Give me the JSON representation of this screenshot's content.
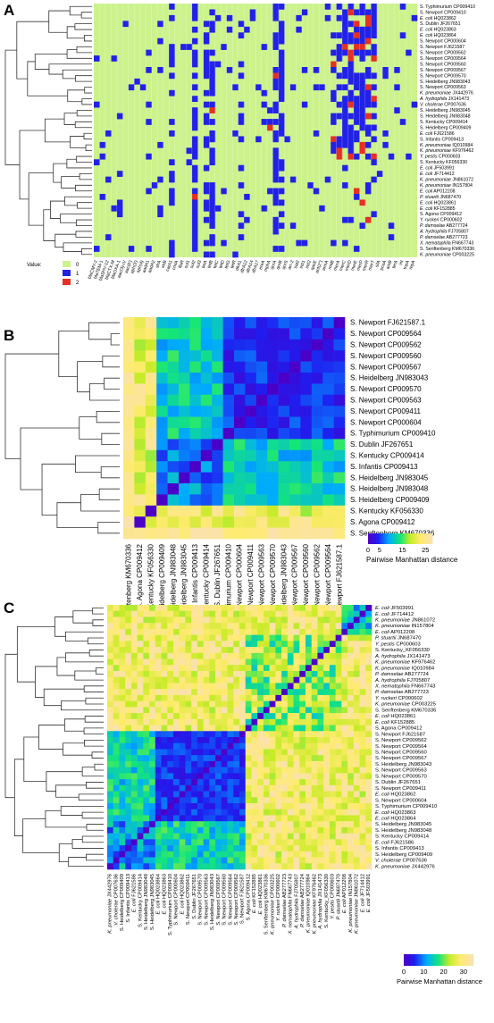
{
  "chart_data": [
    {
      "panel": "A",
      "type": "heatmap",
      "legend_title": "Value:",
      "legend_values": [
        "0",
        "1",
        "2"
      ],
      "colors": {
        "0": "#ccf28c",
        "1": "#2222e6",
        "2": "#e63022"
      },
      "rows": [
        "S. Typhimurium CP009410",
        "S. Newport CP009410",
        "E. coli HQ023862",
        "S. Dublin JF267651",
        "E. coli HQ023863",
        "E. coli HQ023864",
        "S. Newport CP000604",
        "S. Newport FJ621587",
        "S. Newport CP009562",
        "S. Newport CP009564",
        "S. Newport CP009560",
        "S. Newport CP009567",
        "S. Newport CP009570",
        "S. Heidelberg JN983043",
        "S. Newport CP009563",
        "K. pneumoniae JX442976",
        "A. hydrophila JX141473",
        "V. cholerae CP007636",
        "S. Heidelberg JN983045",
        "S. Heidelberg JN983048",
        "S. Kentucky CP009414",
        "S. Heidelberg CP009409",
        "E. coli FJ621586",
        "S. Infantis CP009413",
        "K. pneumoniae IQ010984",
        "K. pneumoniae KF976462",
        "Y. pestis CP000603",
        "S. Kentucky KF056330",
        "E. coli JF503991",
        "E. coli JF714412",
        "K. pneumoniae JN861072",
        "K. pneumoniae IN157804",
        "E. coli AP012208",
        "P. stuartii JN687470",
        "E. coli HQ023861",
        "E. coli KF152885",
        "S. Agona CP009412",
        "Y. ruckeri CP000602",
        "P. damselae AB277724",
        "A. hydrophila FJ705807",
        "P. damselae AB277723",
        "X. nematophila FN667743",
        "S. Senftenberg KM670336",
        "K. pneumoniae CP003225"
      ],
      "columns": [
        "blaCMY-2",
        "blaTEM-1",
        "blaSHV-12",
        "blaCTX-M",
        "blaOXA-1",
        "aac(3)-IV",
        "aac(6')",
        "aph(3')",
        "aph(4)",
        "aadA1",
        "aadA2",
        "strA",
        "strB",
        "catA1",
        "cmlA",
        "floR",
        "sul1",
        "sul2",
        "sul3",
        "tetA",
        "tetB",
        "tetC",
        "tetD",
        "tetG",
        "tetR",
        "dfrA1",
        "dfrA12",
        "dfrA14",
        "dfrA17",
        "ereA",
        "mphA",
        "qnrA",
        "qnrB",
        "qnrS",
        "arr-2",
        "sat2",
        "intI1",
        "intI2",
        "qacE",
        "ant(2'')",
        "armA",
        "rmtB",
        "merA",
        "merC",
        "merD",
        "merE",
        "merP",
        "merR",
        "merT",
        "silA",
        "pcoA",
        "arsB",
        "terA",
        "int",
        "tnpA",
        "repA"
      ],
      "row_dendrogram": true
    },
    {
      "panel": "B",
      "type": "heatmap",
      "colorbar_label": "Pairwise Manhattan distance",
      "colorbar_ticks": [
        0,
        5,
        15,
        25
      ],
      "colorbar_range": [
        0,
        28
      ],
      "rows": [
        "S. Newport FJ621587.1",
        "S. Newport CP009564",
        "S. Newport CP009562",
        "S. Newport CP009560",
        "S. Newport CP009567",
        "S. Heidelberg JN983043",
        "S. Newport CP009570",
        "S. Newport CP009563",
        "S. Newport CP009411",
        "S. Newport CP000604",
        "S. Typhimurium CP009410",
        "S. Dublin JF267651",
        "S. Kentucky CP009414",
        "S. Infantis CP009413",
        "S. Heidelberg JN983045",
        "S. Heidelberg JN983048",
        "S. Heidelberg CP009409",
        "S. Kentucky KF056330",
        "S. Agona CP009412",
        "S. Senftenberg KM670336"
      ],
      "column_labels": [
        "S. Senftenberg KM670336",
        "S. Agona CP009412",
        "S. Kentucky KF056330",
        "S. Heidelberg CP009409",
        "S. Heidelberg JN983048",
        "S. Heidelberg JN983045",
        "S. Infantis CP009413",
        "S. Kentucky CP009414",
        "S. Dublin JF267651",
        "S. Typhimurium CP009410",
        "S. Newport CP000604",
        "S. Newport CP009411",
        "S. Newport CP009563",
        "S. Newport CP009570",
        "S. Heidelberg JN983043",
        "S. Newport CP009567",
        "S. Newport CP009560",
        "S. Newport CP009562",
        "S. Newport CP009564",
        "S. Newport FJ621587.1"
      ],
      "row_dendrogram": true
    },
    {
      "panel": "C",
      "type": "heatmap",
      "colorbar_label": "Pairwise Manhattan distance",
      "colorbar_ticks": [
        0,
        10,
        20,
        30
      ],
      "colorbar_range": [
        0,
        35
      ],
      "rows": [
        "E. coli JF503991",
        "E. coli JF714412",
        "K. pneumoniae JN861072",
        "K. pneumoniae IN157804",
        "E. coli AP012208",
        "P. stuartii JN687470",
        "Y. pestis CP000603",
        "S. Kentucky_KF056330",
        "A. hydrophila JX141473",
        "K. pneumoniae KF976462",
        "K. pneumoniae IQ010984",
        "P. damselae AB277724",
        "A. hydrophila FJ705807",
        "X. nematophila FN667743",
        "P. damselae AB277723",
        "Y. ruckeri CP000602",
        "K. pneumoniae CP003225",
        "S. Senftenberg KM670336",
        "E. coli HQ023861",
        "E. coli KF152885",
        "S. Agona CP009412",
        "S. Newport FJ621587",
        "S. Newport CP009562",
        "S. Newport CP009564",
        "S. Newport CP009560",
        "S. Newport CP009567",
        "S. Heidelberg JN983043",
        "S. Newport CP009563",
        "S. Newport CP009570",
        "S. Dublin JF267651",
        "S. Newport CP009411",
        "E. coli HQ023862",
        "S. Newport CP000604",
        "S. Typhimurium CP009410",
        "E. coli HQ023863",
        "E. coli HQ023864",
        "S. Heidelberg JN983045",
        "S. Heidelberg JN983048",
        "S. Kentucky CP009414",
        "E. coli FJ621586",
        "S. Infantis CP009413",
        "S. Heidelberg CP009409",
        "V. cholerae CP007636",
        "K. pneumoniae JX442976"
      ],
      "row_dendrogram": true
    }
  ]
}
